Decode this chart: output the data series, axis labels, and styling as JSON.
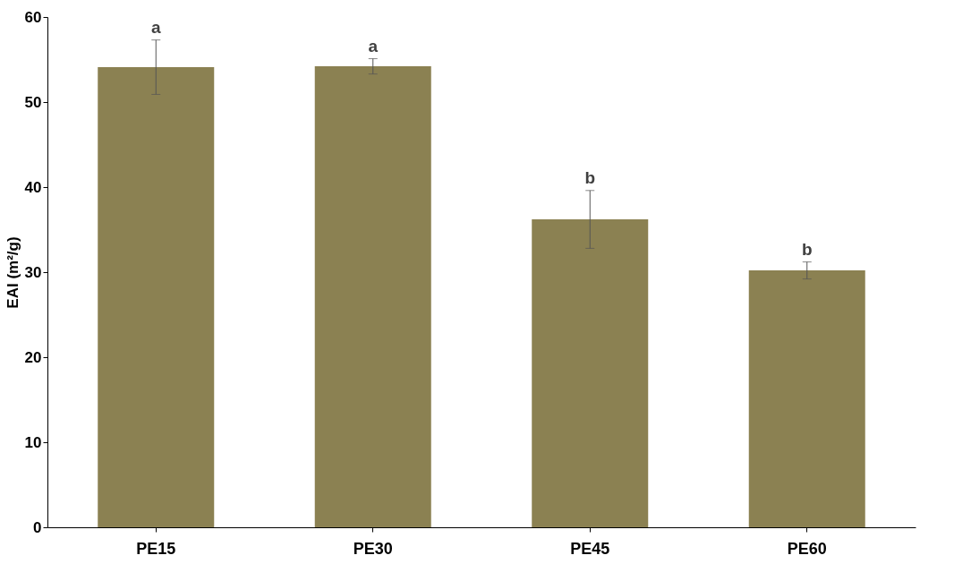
{
  "chart_data": {
    "type": "bar",
    "ylabel": "EAI (m²/g)",
    "categories": [
      "PE15",
      "PE30",
      "PE45",
      "PE60"
    ],
    "values": [
      54.1,
      54.2,
      36.2,
      30.2
    ],
    "errors": [
      3.2,
      0.9,
      3.4,
      1.0
    ],
    "color": "#8b8152",
    "ylim": [
      0,
      60
    ],
    "yticks": [
      0,
      10,
      20,
      30,
      40,
      50,
      60
    ],
    "grid": false,
    "annotations": [
      {
        "text": "a",
        "x": "PE15",
        "y": 57.3
      },
      {
        "text": "a",
        "x": "PE30",
        "y": 55.1
      },
      {
        "text": "b",
        "x": "PE45",
        "y": 39.6
      },
      {
        "text": "b",
        "x": "PE60",
        "y": 31.2
      }
    ]
  }
}
